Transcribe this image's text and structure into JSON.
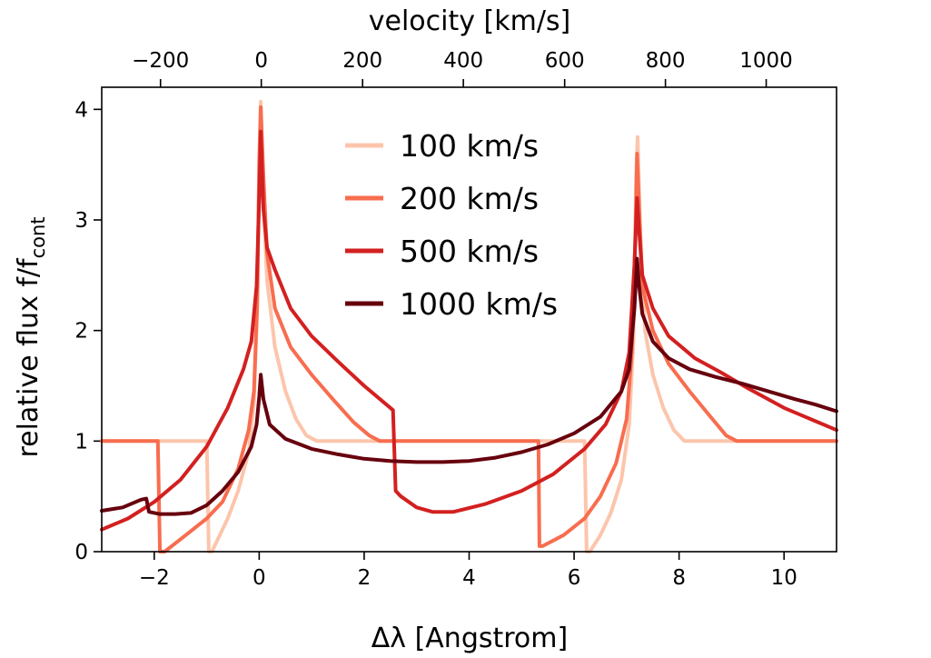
{
  "chart_data": {
    "type": "line",
    "xlabel": "Δλ [Angstrom]",
    "ylabel": "relative flux f/f",
    "ylabel_subscript": "cont",
    "top_xlabel": "velocity [km/s]",
    "xlim": [
      -3,
      11
    ],
    "ylim": [
      0,
      4.2
    ],
    "xticks": [
      -2,
      0,
      2,
      4,
      6,
      8,
      10
    ],
    "xtick_labels": [
      "−2",
      "0",
      "2",
      "4",
      "6",
      "8",
      "10"
    ],
    "yticks": [
      0,
      1,
      2,
      3,
      4
    ],
    "ytick_labels": [
      "0",
      "1",
      "2",
      "3",
      "4"
    ],
    "top_axis": {
      "ticks_angstrom": [
        -1.88,
        0.04,
        1.97,
        3.89,
        5.82,
        7.74,
        9.66
      ],
      "tick_labels": [
        "−200",
        "0",
        "200",
        "400",
        "600",
        "800",
        "1000"
      ]
    },
    "legend": {
      "position": "top-center",
      "frame": false
    },
    "series": [
      {
        "name": "100 km/s",
        "color": "#fcc5ab",
        "points": [
          [
            -3,
            1.0
          ],
          [
            -1.0,
            1.0
          ],
          [
            -0.96,
            0.0
          ],
          [
            -0.9,
            0.0
          ],
          [
            -0.6,
            0.3
          ],
          [
            -0.4,
            0.55
          ],
          [
            -0.2,
            0.9
          ],
          [
            -0.1,
            1.35
          ],
          [
            -0.03,
            2.3
          ],
          [
            0.0,
            3.6
          ],
          [
            0.03,
            4.07
          ],
          [
            0.08,
            3.2
          ],
          [
            0.15,
            2.45
          ],
          [
            0.3,
            1.85
          ],
          [
            0.5,
            1.45
          ],
          [
            0.7,
            1.2
          ],
          [
            0.9,
            1.05
          ],
          [
            1.1,
            1.0
          ],
          [
            6.2,
            1.0
          ],
          [
            6.24,
            0.0
          ],
          [
            6.3,
            0.0
          ],
          [
            6.5,
            0.15
          ],
          [
            6.7,
            0.35
          ],
          [
            6.9,
            0.65
          ],
          [
            7.05,
            1.15
          ],
          [
            7.13,
            1.9
          ],
          [
            7.18,
            3.4
          ],
          [
            7.21,
            3.75
          ],
          [
            7.26,
            2.9
          ],
          [
            7.35,
            2.0
          ],
          [
            7.5,
            1.6
          ],
          [
            7.7,
            1.3
          ],
          [
            7.9,
            1.1
          ],
          [
            8.1,
            1.0
          ],
          [
            11,
            1.0
          ]
        ]
      },
      {
        "name": "200 km/s",
        "color": "#f86d4f",
        "points": [
          [
            -3,
            1.0
          ],
          [
            -1.93,
            1.0
          ],
          [
            -1.89,
            0.0
          ],
          [
            -1.8,
            0.0
          ],
          [
            -1.4,
            0.15
          ],
          [
            -1.0,
            0.3
          ],
          [
            -0.7,
            0.45
          ],
          [
            -0.4,
            0.75
          ],
          [
            -0.2,
            1.1
          ],
          [
            -0.1,
            1.45
          ],
          [
            -0.04,
            2.2
          ],
          [
            0.0,
            3.5
          ],
          [
            0.03,
            4.02
          ],
          [
            0.08,
            3.4
          ],
          [
            0.15,
            2.7
          ],
          [
            0.3,
            2.2
          ],
          [
            0.6,
            1.85
          ],
          [
            1.0,
            1.6
          ],
          [
            1.4,
            1.38
          ],
          [
            1.8,
            1.17
          ],
          [
            2.1,
            1.05
          ],
          [
            2.3,
            1.0
          ],
          [
            5.32,
            1.0
          ],
          [
            5.34,
            0.05
          ],
          [
            5.4,
            0.05
          ],
          [
            5.8,
            0.15
          ],
          [
            6.2,
            0.3
          ],
          [
            6.5,
            0.5
          ],
          [
            6.8,
            0.8
          ],
          [
            7.0,
            1.2
          ],
          [
            7.1,
            1.8
          ],
          [
            7.17,
            2.9
          ],
          [
            7.2,
            3.6
          ],
          [
            7.24,
            3.1
          ],
          [
            7.3,
            2.4
          ],
          [
            7.5,
            2.0
          ],
          [
            7.8,
            1.7
          ],
          [
            8.2,
            1.45
          ],
          [
            8.6,
            1.22
          ],
          [
            8.9,
            1.05
          ],
          [
            9.1,
            1.0
          ],
          [
            11,
            1.0
          ]
        ]
      },
      {
        "name": "500 km/s",
        "color": "#d32020",
        "points": [
          [
            -3,
            0.2
          ],
          [
            -2.5,
            0.3
          ],
          [
            -2.0,
            0.45
          ],
          [
            -1.5,
            0.65
          ],
          [
            -1.0,
            0.95
          ],
          [
            -0.6,
            1.3
          ],
          [
            -0.3,
            1.65
          ],
          [
            -0.15,
            1.9
          ],
          [
            -0.05,
            2.4
          ],
          [
            0.0,
            3.2
          ],
          [
            0.03,
            3.8
          ],
          [
            0.08,
            3.1
          ],
          [
            0.15,
            2.75
          ],
          [
            0.3,
            2.55
          ],
          [
            0.6,
            2.2
          ],
          [
            1.0,
            1.95
          ],
          [
            1.5,
            1.72
          ],
          [
            2.0,
            1.5
          ],
          [
            2.5,
            1.3
          ],
          [
            2.55,
            1.28
          ],
          [
            2.6,
            0.55
          ],
          [
            2.7,
            0.5
          ],
          [
            3.0,
            0.4
          ],
          [
            3.3,
            0.36
          ],
          [
            3.7,
            0.36
          ],
          [
            4.3,
            0.43
          ],
          [
            5.0,
            0.55
          ],
          [
            5.6,
            0.7
          ],
          [
            6.2,
            0.93
          ],
          [
            6.6,
            1.15
          ],
          [
            6.9,
            1.45
          ],
          [
            7.05,
            1.8
          ],
          [
            7.15,
            2.6
          ],
          [
            7.2,
            3.2
          ],
          [
            7.24,
            2.9
          ],
          [
            7.3,
            2.5
          ],
          [
            7.5,
            2.2
          ],
          [
            7.8,
            1.95
          ],
          [
            8.3,
            1.75
          ],
          [
            8.8,
            1.62
          ],
          [
            9.3,
            1.48
          ],
          [
            10.0,
            1.3
          ],
          [
            10.5,
            1.2
          ],
          [
            11,
            1.1
          ]
        ]
      },
      {
        "name": "1000 km/s",
        "color": "#67000d",
        "points": [
          [
            -3,
            0.37
          ],
          [
            -2.6,
            0.4
          ],
          [
            -2.25,
            0.47
          ],
          [
            -2.15,
            0.48
          ],
          [
            -2.1,
            0.36
          ],
          [
            -1.9,
            0.34
          ],
          [
            -1.6,
            0.34
          ],
          [
            -1.3,
            0.35
          ],
          [
            -1.0,
            0.42
          ],
          [
            -0.7,
            0.55
          ],
          [
            -0.4,
            0.72
          ],
          [
            -0.15,
            0.95
          ],
          [
            -0.05,
            1.15
          ],
          [
            0.0,
            1.4
          ],
          [
            0.03,
            1.6
          ],
          [
            0.08,
            1.38
          ],
          [
            0.2,
            1.15
          ],
          [
            0.5,
            1.02
          ],
          [
            1.0,
            0.93
          ],
          [
            1.5,
            0.88
          ],
          [
            2.0,
            0.84
          ],
          [
            2.5,
            0.82
          ],
          [
            3.0,
            0.81
          ],
          [
            3.5,
            0.81
          ],
          [
            4.0,
            0.82
          ],
          [
            4.5,
            0.85
          ],
          [
            5.0,
            0.9
          ],
          [
            5.5,
            0.97
          ],
          [
            6.0,
            1.07
          ],
          [
            6.5,
            1.22
          ],
          [
            6.9,
            1.45
          ],
          [
            7.05,
            1.65
          ],
          [
            7.15,
            2.2
          ],
          [
            7.2,
            2.65
          ],
          [
            7.24,
            2.4
          ],
          [
            7.3,
            2.15
          ],
          [
            7.5,
            1.9
          ],
          [
            7.8,
            1.75
          ],
          [
            8.2,
            1.65
          ],
          [
            8.7,
            1.58
          ],
          [
            9.2,
            1.52
          ],
          [
            9.7,
            1.45
          ],
          [
            10.2,
            1.38
          ],
          [
            10.6,
            1.33
          ],
          [
            11,
            1.27
          ]
        ]
      }
    ]
  }
}
